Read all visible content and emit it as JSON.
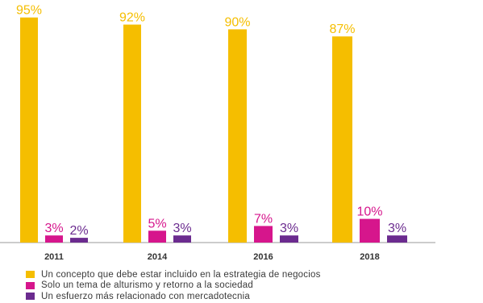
{
  "chart_data": {
    "type": "bar",
    "categories": [
      "2011",
      "2014",
      "2016",
      "2018"
    ],
    "series": [
      {
        "name": "Un concepto que debe estar incluido en la estrategia de negocios",
        "color": "#F5BE00",
        "values": [
          95,
          92,
          90,
          87
        ],
        "labels": [
          "95%",
          "92%",
          "90%",
          "87%"
        ]
      },
      {
        "name": "Solo un tema de alturismo y retorno a la sociedad",
        "color": "#D6168C",
        "values": [
          3,
          5,
          7,
          10
        ],
        "labels": [
          "3%",
          "5%",
          "7%",
          "10%"
        ]
      },
      {
        "name": "Un esfuerzo más relacionado con mercadotecnia",
        "color": "#6B2B8F",
        "values": [
          2,
          3,
          3,
          3
        ],
        "labels": [
          "2%",
          "3%",
          "3%",
          "3%"
        ]
      }
    ],
    "ylim": [
      0,
      100
    ],
    "grid": false,
    "legend_position": "bottom-left"
  }
}
